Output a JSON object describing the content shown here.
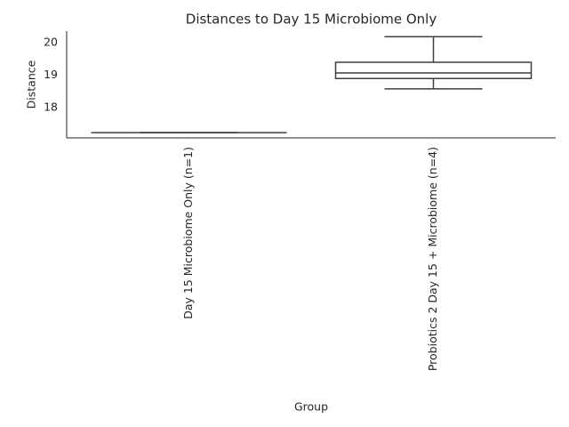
{
  "chart_data": {
    "type": "box",
    "title": "Distances to Day 15 Microbiome Only",
    "xlabel": "Group",
    "ylabel": "Distance",
    "categories": [
      "Day 15 Microbiome Only (n=1)",
      "Probiotics 2 Day 15 + Microbiome (n=4)"
    ],
    "boxes": [
      {
        "min": 17.23,
        "q1": 17.23,
        "median": 17.23,
        "q3": 17.23,
        "max": 17.23
      },
      {
        "min": 18.58,
        "q1": 18.9,
        "median": 19.07,
        "q3": 19.4,
        "max": 20.19
      }
    ],
    "color": "#3f3f3f",
    "ylim": [
      17.07,
      20.36
    ],
    "yticks": [
      18,
      19,
      20
    ],
    "grid": false
  }
}
